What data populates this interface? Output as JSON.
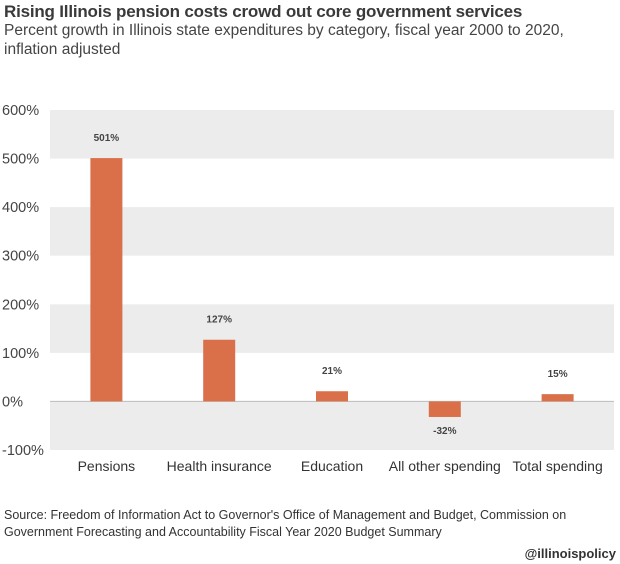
{
  "title": "Rising Illinois pension costs crowd out core government services",
  "subtitle": "Percent growth in Illinois state expenditures by category, fiscal year 2000 to 2020, inflation adjusted",
  "source": "Source: Freedom of Information Act to Governor's Office of Management and Budget, Commission on Government Forecasting and Accountability Fiscal Year 2020 Budget Summary",
  "handle": "@illinoispolicy",
  "colors": {
    "bar": "#d9704a",
    "band": "#ececec",
    "zero": "#bdbdbd"
  },
  "chart_data": {
    "type": "bar",
    "title": "Rising Illinois pension costs crowd out core government services",
    "xlabel": "",
    "ylabel": "",
    "ylim": [
      -100,
      600
    ],
    "yticks": [
      600,
      500,
      400,
      300,
      200,
      100,
      0,
      -100
    ],
    "ytick_labels": [
      "600%",
      "500%",
      "400%",
      "300%",
      "200%",
      "100%",
      "0%",
      "-100%"
    ],
    "categories": [
      "Pensions",
      "Health insurance",
      "Education",
      "All other spending",
      "Total spending"
    ],
    "values": [
      501,
      127,
      21,
      -32,
      15
    ],
    "data_labels": [
      "501%",
      "127%",
      "21%",
      "-32%",
      "15%"
    ],
    "grid": "alternating horizontal bands",
    "legend": "none"
  }
}
